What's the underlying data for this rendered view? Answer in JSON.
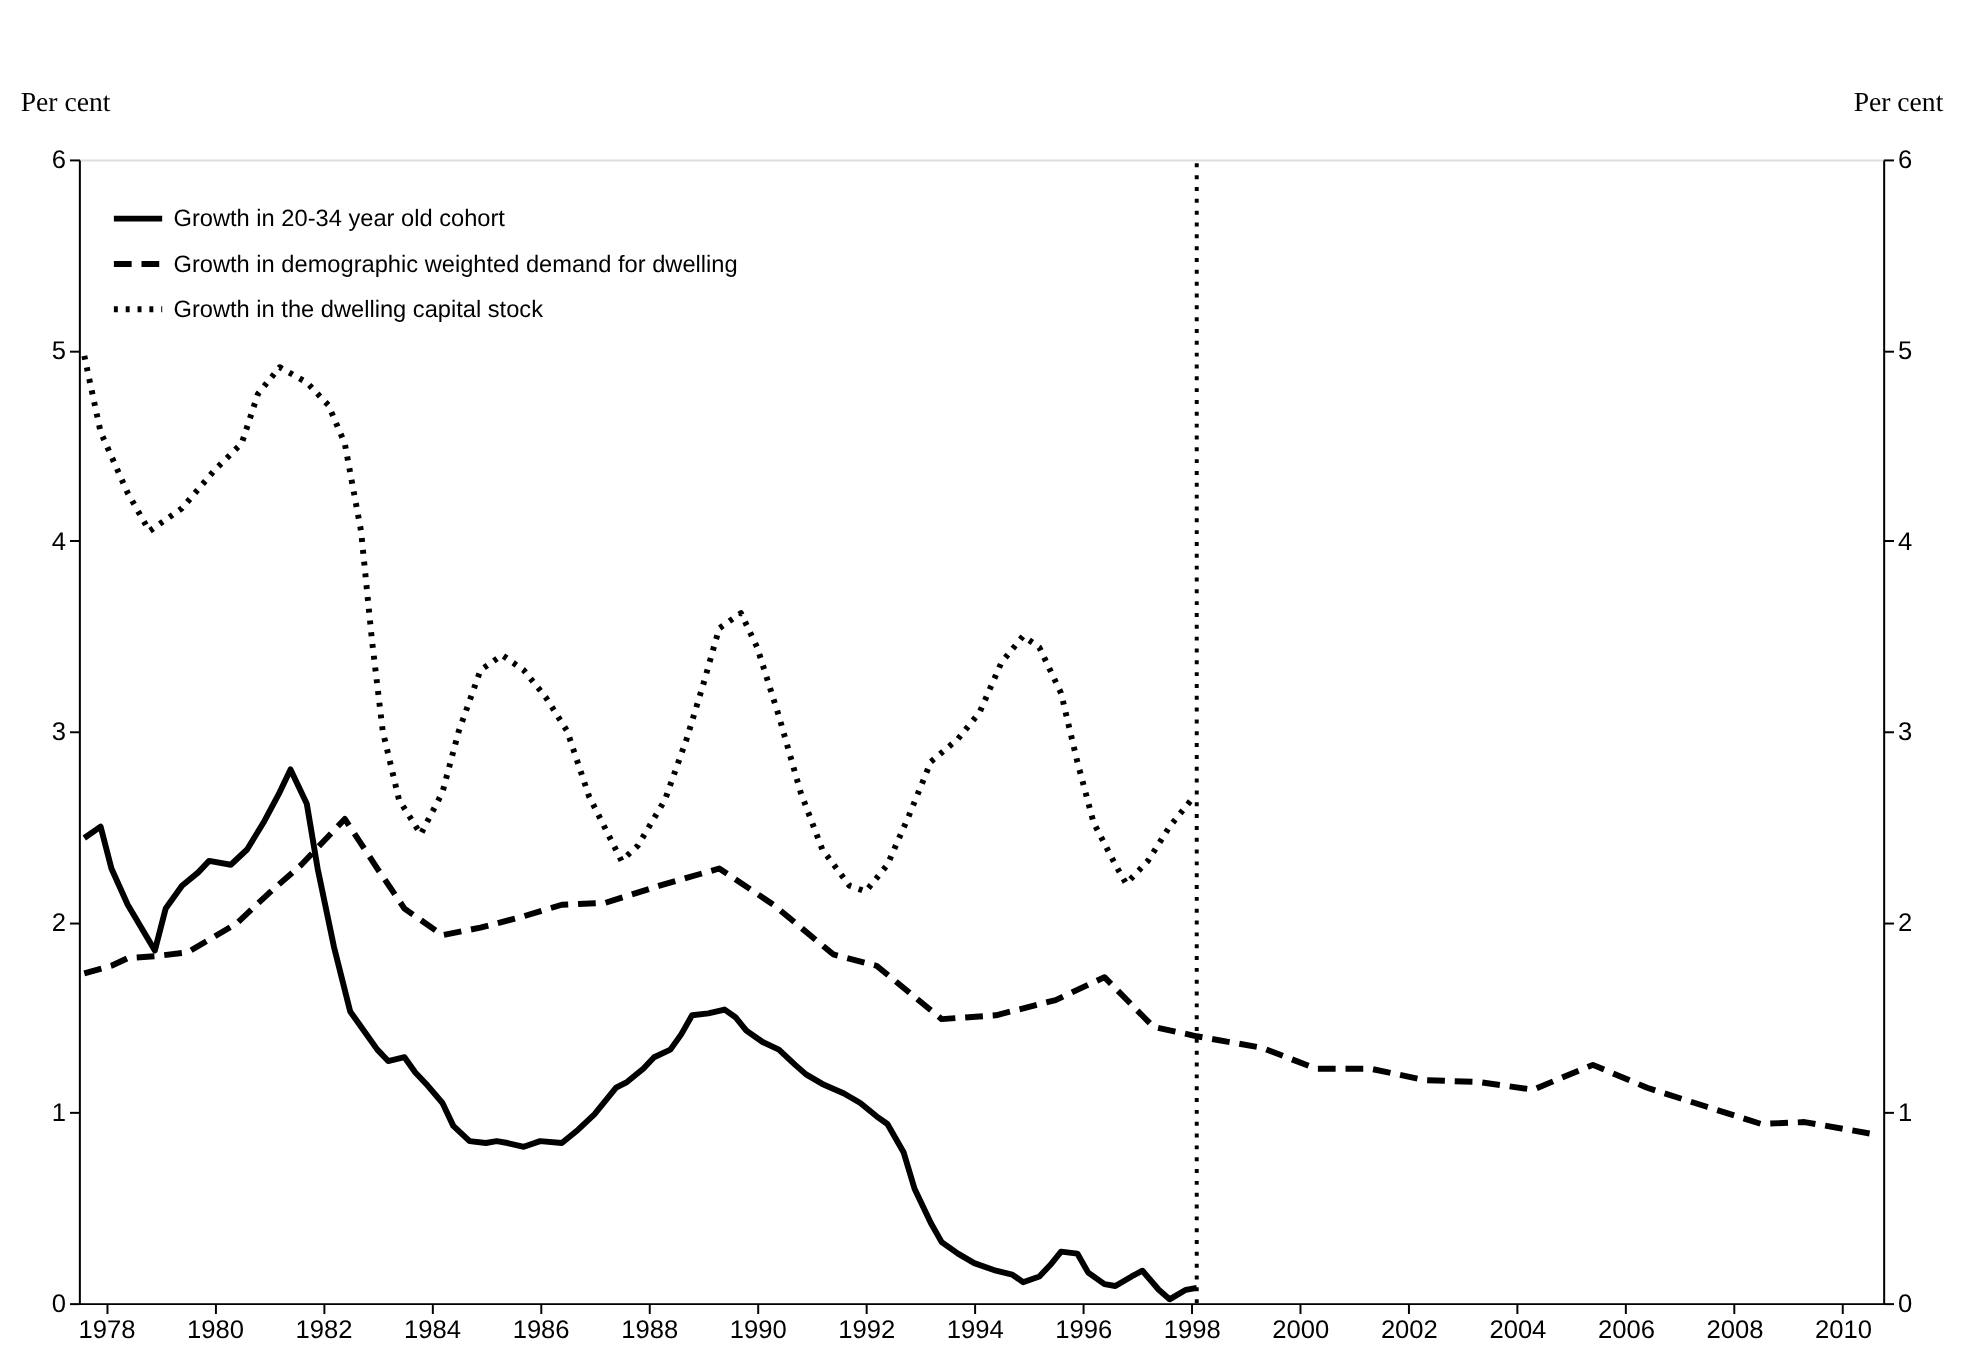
{
  "chart_data": {
    "type": "line",
    "ylabel": "Per cent",
    "y2label": "Per cent",
    "xlim": [
      1977.5,
      2010.75
    ],
    "xticks": [
      1978,
      1980,
      1982,
      1984,
      1986,
      1988,
      1990,
      1992,
      1994,
      1996,
      1998,
      2000,
      2002,
      2004,
      2006,
      2008,
      2010
    ],
    "ylim": [
      0,
      6
    ],
    "yticks": [
      0,
      1,
      2,
      3,
      4,
      5,
      6
    ],
    "y2lim": [
      0,
      6
    ],
    "y2ticks": [
      0,
      1,
      2,
      3,
      4,
      5,
      6
    ],
    "grid": false,
    "legend": "top left",
    "ref_lines": [
      {
        "axis": "x",
        "value": 1998.1,
        "color": "#000000",
        "line_style": "dotted"
      }
    ],
    "series": [
      {
        "name": "Growth in 20-34 year old cohort",
        "color": "#000000",
        "line_style": "solid",
        "x": [
          1977.6,
          1977.9,
          1978.1,
          1978.4,
          1978.9,
          1979.1,
          1979.4,
          1979.7,
          1979.9,
          1980.3,
          1980.6,
          1980.9,
          1981.2,
          1981.4,
          1981.7,
          1981.9,
          1982.2,
          1982.5,
          1982.7,
          1983.0,
          1983.2,
          1983.5,
          1983.7,
          1983.9,
          1984.2,
          1984.4,
          1984.7,
          1985.0,
          1985.2,
          1985.4,
          1985.7,
          1986.0,
          1986.4,
          1986.7,
          1987.0,
          1987.4,
          1987.6,
          1987.9,
          1988.1,
          1988.4,
          1988.6,
          1988.8,
          1989.1,
          1989.4,
          1989.6,
          1989.8,
          1990.1,
          1990.4,
          1990.7,
          1990.9,
          1991.2,
          1991.6,
          1991.9,
          1992.2,
          1992.4,
          1992.7,
          1992.9,
          1993.2,
          1993.4,
          1993.7,
          1994.0,
          1994.4,
          1994.7,
          1994.9,
          1995.2,
          1995.4,
          1995.6,
          1995.9,
          1996.1,
          1996.4,
          1996.6,
          1996.9,
          1997.1,
          1997.4,
          1997.6,
          1997.9,
          1998.1
        ],
        "values": [
          2.44,
          2.5,
          2.28,
          2.09,
          1.85,
          2.07,
          2.19,
          2.26,
          2.32,
          2.3,
          2.38,
          2.52,
          2.68,
          2.8,
          2.62,
          2.28,
          1.87,
          1.53,
          1.45,
          1.33,
          1.27,
          1.29,
          1.21,
          1.15,
          1.05,
          0.93,
          0.85,
          0.84,
          0.85,
          0.84,
          0.82,
          0.85,
          0.84,
          0.91,
          0.99,
          1.13,
          1.16,
          1.23,
          1.29,
          1.33,
          1.41,
          1.51,
          1.52,
          1.54,
          1.5,
          1.43,
          1.37,
          1.33,
          1.25,
          1.2,
          1.15,
          1.1,
          1.05,
          0.98,
          0.94,
          0.79,
          0.6,
          0.42,
          0.32,
          0.26,
          0.21,
          0.17,
          0.15,
          0.11,
          0.14,
          0.2,
          0.27,
          0.26,
          0.16,
          0.1,
          0.09,
          0.14,
          0.17,
          0.07,
          0.02,
          0.07,
          0.08
        ]
      },
      {
        "name": "Growth in demographic weighted demand for dwelling",
        "color": "#000000",
        "line_style": "dashed",
        "x": [
          1977.6,
          1978.1,
          1978.4,
          1978.9,
          1979.5,
          1980.4,
          1981.0,
          1981.6,
          1982.4,
          1983.0,
          1983.5,
          1984.2,
          1984.9,
          1985.7,
          1986.4,
          1987.2,
          1988.2,
          1989.3,
          1990.3,
          1991.4,
          1992.2,
          1993.4,
          1994.4,
          1995.5,
          1996.4,
          1997.3,
          1998.1,
          1999.3,
          2000.3,
          2001.3,
          2002.3,
          2003.3,
          2004.3,
          2005.4,
          2006.4,
          2007.5,
          2008.5,
          2009.3,
          2010.5
        ],
        "values": [
          1.73,
          1.77,
          1.81,
          1.82,
          1.84,
          1.99,
          2.15,
          2.3,
          2.54,
          2.28,
          2.07,
          1.93,
          1.97,
          2.03,
          2.09,
          2.1,
          2.19,
          2.28,
          2.09,
          1.83,
          1.77,
          1.49,
          1.51,
          1.59,
          1.71,
          1.45,
          1.4,
          1.34,
          1.23,
          1.23,
          1.17,
          1.16,
          1.12,
          1.25,
          1.13,
          1.03,
          0.94,
          0.95,
          0.89
        ]
      },
      {
        "name": "Growth in the dwelling capital stock",
        "color": "#000000",
        "line_style": "dotted",
        "x": [
          1977.6,
          1977.9,
          1978.4,
          1978.8,
          1979.4,
          1980.0,
          1980.5,
          1980.8,
          1981.2,
          1981.7,
          1982.1,
          1982.4,
          1982.7,
          1982.9,
          1983.1,
          1983.4,
          1983.8,
          1984.2,
          1984.5,
          1984.9,
          1985.3,
          1985.7,
          1986.1,
          1986.5,
          1986.9,
          1987.5,
          1987.8,
          1988.3,
          1988.7,
          1989.0,
          1989.3,
          1989.7,
          1990.0,
          1990.4,
          1990.8,
          1991.2,
          1991.7,
          1992.0,
          1992.4,
          1992.8,
          1993.2,
          1993.7,
          1994.1,
          1994.5,
          1994.9,
          1995.2,
          1995.6,
          1995.9,
          1996.2,
          1996.6,
          1996.8,
          1997.2,
          1997.6,
          1998.0
        ],
        "values": [
          4.97,
          4.57,
          4.25,
          4.05,
          4.17,
          4.37,
          4.51,
          4.77,
          4.91,
          4.83,
          4.71,
          4.51,
          4.05,
          3.48,
          3.0,
          2.64,
          2.46,
          2.68,
          3.0,
          3.32,
          3.4,
          3.32,
          3.18,
          3.0,
          2.66,
          2.32,
          2.4,
          2.64,
          2.96,
          3.24,
          3.54,
          3.62,
          3.44,
          3.08,
          2.68,
          2.38,
          2.19,
          2.16,
          2.3,
          2.56,
          2.84,
          2.96,
          3.1,
          3.36,
          3.5,
          3.44,
          3.2,
          2.84,
          2.52,
          2.3,
          2.2,
          2.32,
          2.5,
          2.64
        ]
      }
    ]
  }
}
